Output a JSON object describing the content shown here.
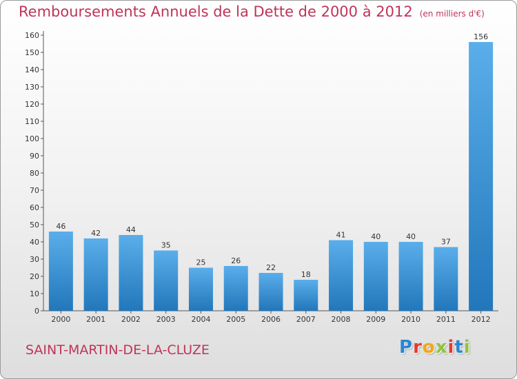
{
  "header": {
    "title": "Remboursements Annuels de la Dette de 2000 à 2012",
    "subtitle": "(en milliers d'€)"
  },
  "footer": {
    "commune": "SAINT-MARTIN-DE-LA-CLUZE",
    "logo_letters": [
      {
        "char": "P",
        "color": "#2a86d1"
      },
      {
        "char": "r",
        "color": "#e23b2e"
      },
      {
        "char": "o",
        "color": "#f2a71b"
      },
      {
        "char": "x",
        "color": "#8dc63f"
      },
      {
        "char": "i",
        "color": "#e23b2e"
      },
      {
        "char": "t",
        "color": "#2a86d1"
      },
      {
        "char": "i",
        "color": "#8dc63f"
      }
    ]
  },
  "colors": {
    "accent": "#c0335a",
    "bar_light": "#5aaeea",
    "bar_dark": "#2277bb"
  },
  "chart_data": {
    "type": "bar",
    "categories": [
      "2000",
      "2001",
      "2002",
      "2003",
      "2004",
      "2005",
      "2006",
      "2007",
      "2008",
      "2009",
      "2010",
      "2011",
      "2012"
    ],
    "values": [
      46,
      42,
      44,
      35,
      25,
      26,
      22,
      18,
      41,
      40,
      40,
      37,
      156
    ],
    "data_labels": [
      "46",
      "42",
      "44",
      "35",
      "25",
      "26",
      "22",
      "18",
      "41",
      "40",
      "40",
      "37",
      "156"
    ],
    "yticks": [
      "0",
      "10",
      "20",
      "30",
      "40",
      "50",
      "60",
      "70",
      "80",
      "90",
      "100",
      "110",
      "120",
      "130",
      "140",
      "150",
      "160"
    ],
    "ylim": [
      0,
      160
    ],
    "grid": false
  }
}
